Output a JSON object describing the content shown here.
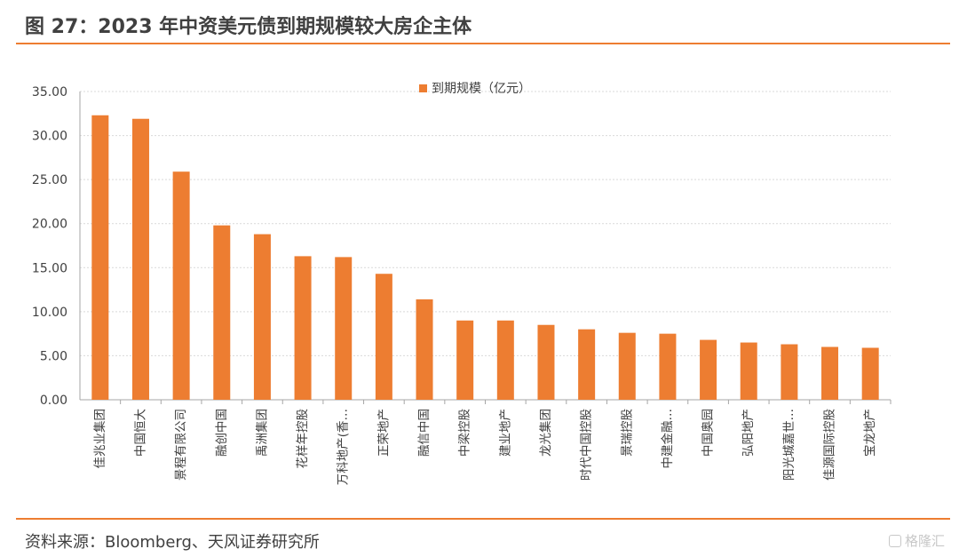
{
  "header": {
    "title": "图 27：2023 年中资美元债到期规模较大房企主体"
  },
  "footer": {
    "source": "资料来源：Bloomberg、天风证券研究所",
    "watermark": "格隆汇"
  },
  "colors": {
    "bar": "#ED7D31",
    "accent_rule": "#ED7D31",
    "grid": "#d9d9d9",
    "axis": "#a6a6a6"
  },
  "chart_data": {
    "type": "bar",
    "categories": [
      "佳兆业集团",
      "中国恒大",
      "景程有限公司",
      "融创中国",
      "禹洲集团",
      "花样年控股",
      "万科地产(香…",
      "正荣地产",
      "融信中国",
      "中梁控股",
      "建业地产",
      "龙光集团",
      "时代中国控股",
      "景瑞控股",
      "中建金融…",
      "中国奥园",
      "弘阳地产",
      "阳光城嘉世…",
      "佳源国际控股",
      "宝龙地产"
    ],
    "series": [
      {
        "name": "到期规模（亿元）",
        "values": [
          32.3,
          31.9,
          25.9,
          19.8,
          18.8,
          16.3,
          16.2,
          14.3,
          11.4,
          9.0,
          9.0,
          8.5,
          8.0,
          7.6,
          7.5,
          6.8,
          6.5,
          6.3,
          6.0,
          5.9
        ]
      }
    ],
    "ylim": [
      0,
      35
    ],
    "yticks": [
      "0.00",
      "5.00",
      "10.00",
      "15.00",
      "20.00",
      "25.00",
      "30.00",
      "35.00"
    ],
    "legend_position": "top-center",
    "grid": true
  }
}
